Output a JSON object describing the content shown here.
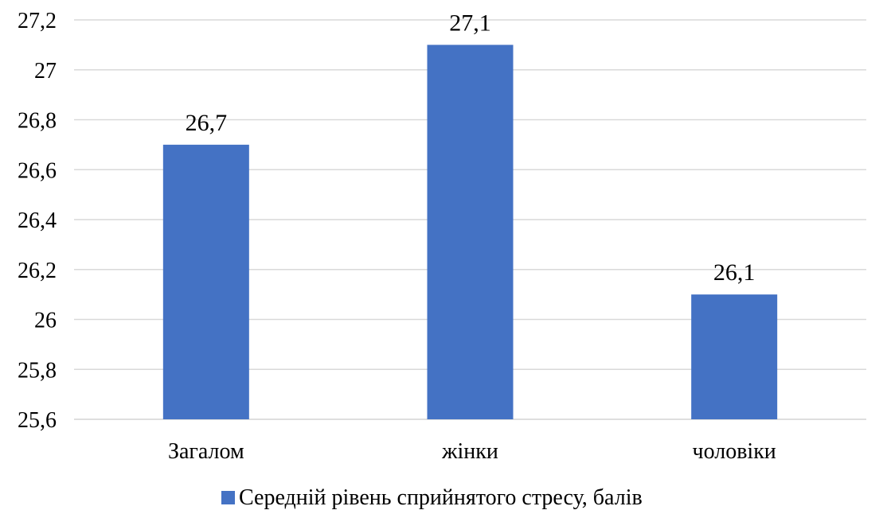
{
  "chart_data": {
    "type": "bar",
    "categories": [
      "Загалом",
      "жінки",
      "чоловіки"
    ],
    "series": [
      {
        "name": "Середній рівень сприйнятого стресу, балів",
        "values": [
          26.7,
          27.1,
          26.1
        ],
        "data_labels": [
          "26,7",
          "27,1",
          "26,1"
        ],
        "color": "#4472c4"
      }
    ],
    "ylim": [
      25.6,
      27.2
    ],
    "yticks": [
      25.6,
      25.8,
      26.0,
      26.2,
      26.4,
      26.6,
      26.8,
      27.0,
      27.2
    ],
    "ytick_labels": [
      "25,6",
      "25,8",
      "26",
      "26,2",
      "26,4",
      "26,6",
      "26,8",
      "27",
      "27,2"
    ],
    "grid": true,
    "legend_position": "bottom",
    "title": "",
    "xlabel": "",
    "ylabel": ""
  },
  "colors": {
    "bar": "#4472c4",
    "grid": "#d9d9d9",
    "text": "#000000"
  }
}
